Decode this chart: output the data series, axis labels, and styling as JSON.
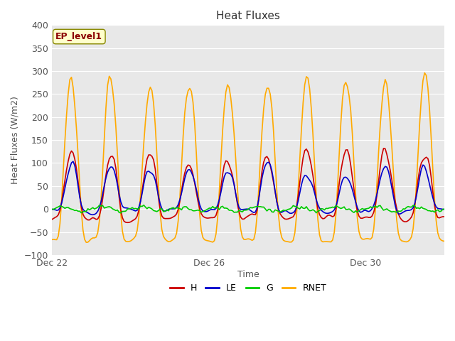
{
  "title": "Heat Fluxes",
  "ylabel": "Heat Fluxes (W/m2)",
  "xlabel": "Time",
  "annotation": "EP_level1",
  "ylim": [
    -100,
    400
  ],
  "yticks": [
    -100,
    -50,
    0,
    50,
    100,
    150,
    200,
    250,
    300,
    350,
    400
  ],
  "colors": {
    "H": "#cc0000",
    "LE": "#0000cc",
    "G": "#00cc00",
    "RNET": "#ffaa00"
  },
  "bg_color": "#e8e8e8",
  "legend_labels": [
    "H",
    "LE",
    "G",
    "RNET"
  ],
  "x_tick_labels": [
    "Dec 22",
    "Dec 26",
    "Dec 30"
  ],
  "num_points": 240
}
